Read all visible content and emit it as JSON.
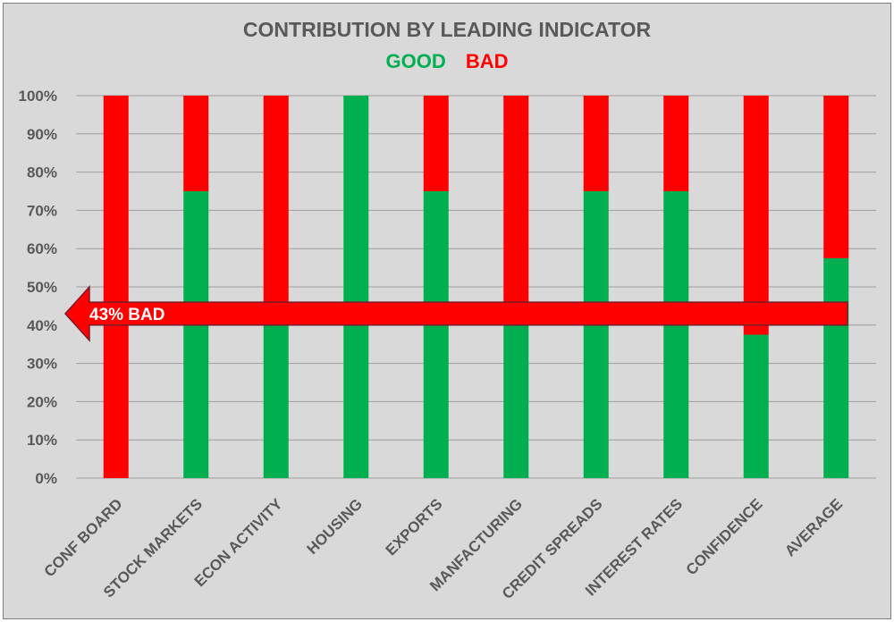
{
  "chart_data": {
    "type": "bar",
    "stacked": true,
    "title": "CONTRIBUTION BY LEADING INDICATOR",
    "legend": [
      {
        "label": "GOOD",
        "color": "#00b050"
      },
      {
        "label": "BAD",
        "color": "#ff0000"
      }
    ],
    "categories": [
      "CONF BOARD",
      "STOCK MARKETS",
      "ECON ACTIVITY",
      "HOUSING",
      "EXPORTS",
      "MANFACTURING",
      "CREDIT SPREADS",
      "INTEREST RATES",
      "CONFIDENCE",
      "AVERAGE"
    ],
    "series": [
      {
        "name": "GOOD",
        "color": "#00b050",
        "values": [
          0,
          75,
          40,
          100,
          75,
          40,
          75,
          75,
          37.5,
          57.5
        ]
      },
      {
        "name": "BAD",
        "color": "#ff0000",
        "values": [
          100,
          25,
          60,
          0,
          25,
          60,
          25,
          25,
          62.5,
          42.5
        ]
      }
    ],
    "ylim": [
      0,
      100
    ],
    "yticks": [
      "0%",
      "10%",
      "20%",
      "30%",
      "40%",
      "50%",
      "60%",
      "70%",
      "80%",
      "90%",
      "100%"
    ],
    "grid": true,
    "annotation": {
      "text": "43% BAD",
      "y_from": 40,
      "y_to": 46,
      "color": "#ff0000"
    }
  }
}
